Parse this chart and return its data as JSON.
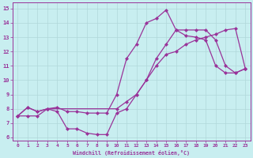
{
  "xlabel": "Windchill (Refroidissement éolien,°C)",
  "bg_color": "#c8eef0",
  "grid_color": "#b0d8da",
  "line_color": "#993399",
  "xlim": [
    -0.5,
    23.5
  ],
  "ylim": [
    5.8,
    15.4
  ],
  "xticks": [
    0,
    1,
    2,
    3,
    4,
    5,
    6,
    7,
    8,
    9,
    10,
    11,
    12,
    13,
    14,
    15,
    16,
    17,
    18,
    19,
    20,
    21,
    22,
    23
  ],
  "yticks": [
    6,
    7,
    8,
    9,
    10,
    11,
    12,
    13,
    14,
    15
  ],
  "line1_x": [
    0,
    1,
    2,
    3,
    4,
    5,
    6,
    7,
    8,
    9,
    10,
    11,
    12,
    13,
    14,
    15,
    16,
    17,
    18,
    19,
    20,
    21,
    22,
    23
  ],
  "line1_y": [
    7.5,
    8.1,
    7.8,
    8.0,
    8.1,
    7.8,
    7.8,
    7.7,
    7.7,
    7.7,
    9.0,
    11.5,
    12.5,
    14.0,
    14.3,
    14.9,
    13.5,
    13.1,
    13.0,
    12.8,
    11.0,
    10.5,
    10.5,
    10.8
  ],
  "line2_x": [
    0,
    1,
    2,
    3,
    4,
    5,
    6,
    7,
    8,
    9,
    10,
    11,
    12,
    13,
    14,
    15,
    16,
    17,
    18,
    19,
    20,
    21,
    22,
    23
  ],
  "line2_y": [
    7.5,
    8.1,
    7.8,
    8.0,
    7.8,
    6.6,
    6.6,
    6.3,
    6.2,
    6.2,
    7.7,
    8.0,
    9.0,
    10.0,
    11.5,
    12.5,
    13.5,
    13.5,
    13.5,
    13.5,
    12.8,
    11.0,
    10.5,
    10.8
  ],
  "line3_x": [
    0,
    1,
    2,
    3,
    10,
    11,
    12,
    13,
    14,
    15,
    16,
    17,
    18,
    19,
    20,
    21,
    22,
    23
  ],
  "line3_y": [
    7.5,
    7.5,
    7.5,
    8.0,
    8.0,
    8.5,
    9.0,
    10.0,
    11.0,
    11.8,
    12.0,
    12.5,
    12.8,
    13.0,
    13.2,
    13.5,
    13.6,
    10.8
  ]
}
